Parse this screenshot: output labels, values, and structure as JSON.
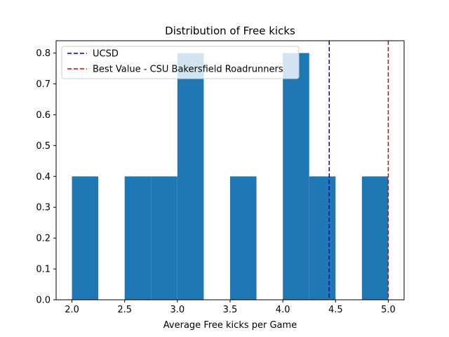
{
  "chart_data": {
    "type": "bar",
    "title": "Distribution of Free kicks",
    "xlabel": "Average Free kicks per Game",
    "ylabel": "",
    "xlim": [
      1.85,
      5.15
    ],
    "ylim": [
      0,
      0.84
    ],
    "bar_color": "#1f77b4",
    "bins": [
      {
        "x0": 2.0,
        "x1": 2.25,
        "value": 0.4
      },
      {
        "x0": 2.25,
        "x1": 2.5,
        "value": 0.0
      },
      {
        "x0": 2.5,
        "x1": 2.75,
        "value": 0.4
      },
      {
        "x0": 2.75,
        "x1": 3.0,
        "value": 0.4
      },
      {
        "x0": 3.0,
        "x1": 3.25,
        "value": 0.8
      },
      {
        "x0": 3.25,
        "x1": 3.5,
        "value": 0.0
      },
      {
        "x0": 3.5,
        "x1": 3.75,
        "value": 0.4
      },
      {
        "x0": 3.75,
        "x1": 4.0,
        "value": 0.0
      },
      {
        "x0": 4.0,
        "x1": 4.25,
        "value": 0.8
      },
      {
        "x0": 4.25,
        "x1": 4.5,
        "value": 0.4
      },
      {
        "x0": 4.5,
        "x1": 4.75,
        "value": 0.0
      },
      {
        "x0": 4.75,
        "x1": 5.0,
        "value": 0.4
      }
    ],
    "xticks": [
      {
        "value": 2.0,
        "label": "2.0"
      },
      {
        "value": 2.5,
        "label": "2.5"
      },
      {
        "value": 3.0,
        "label": "3.0"
      },
      {
        "value": 3.5,
        "label": "3.5"
      },
      {
        "value": 4.0,
        "label": "4.0"
      },
      {
        "value": 4.5,
        "label": "4.5"
      },
      {
        "value": 5.0,
        "label": "5.0"
      }
    ],
    "yticks": [
      {
        "value": 0.0,
        "label": "0.0"
      },
      {
        "value": 0.1,
        "label": "0.1"
      },
      {
        "value": 0.2,
        "label": "0.2"
      },
      {
        "value": 0.3,
        "label": "0.3"
      },
      {
        "value": 0.4,
        "label": "0.4"
      },
      {
        "value": 0.5,
        "label": "0.5"
      },
      {
        "value": 0.6,
        "label": "0.6"
      },
      {
        "value": 0.7,
        "label": "0.7"
      },
      {
        "value": 0.8,
        "label": "0.8"
      }
    ],
    "reference_lines": [
      {
        "name": "UCSD",
        "x": 4.44,
        "color": "#0000cc"
      },
      {
        "name": "Best Value - CSU Bakersfield Roadrunners",
        "x": 5.0,
        "color": "#dd0000"
      }
    ],
    "legend_position": "top-left",
    "grid": false
  }
}
